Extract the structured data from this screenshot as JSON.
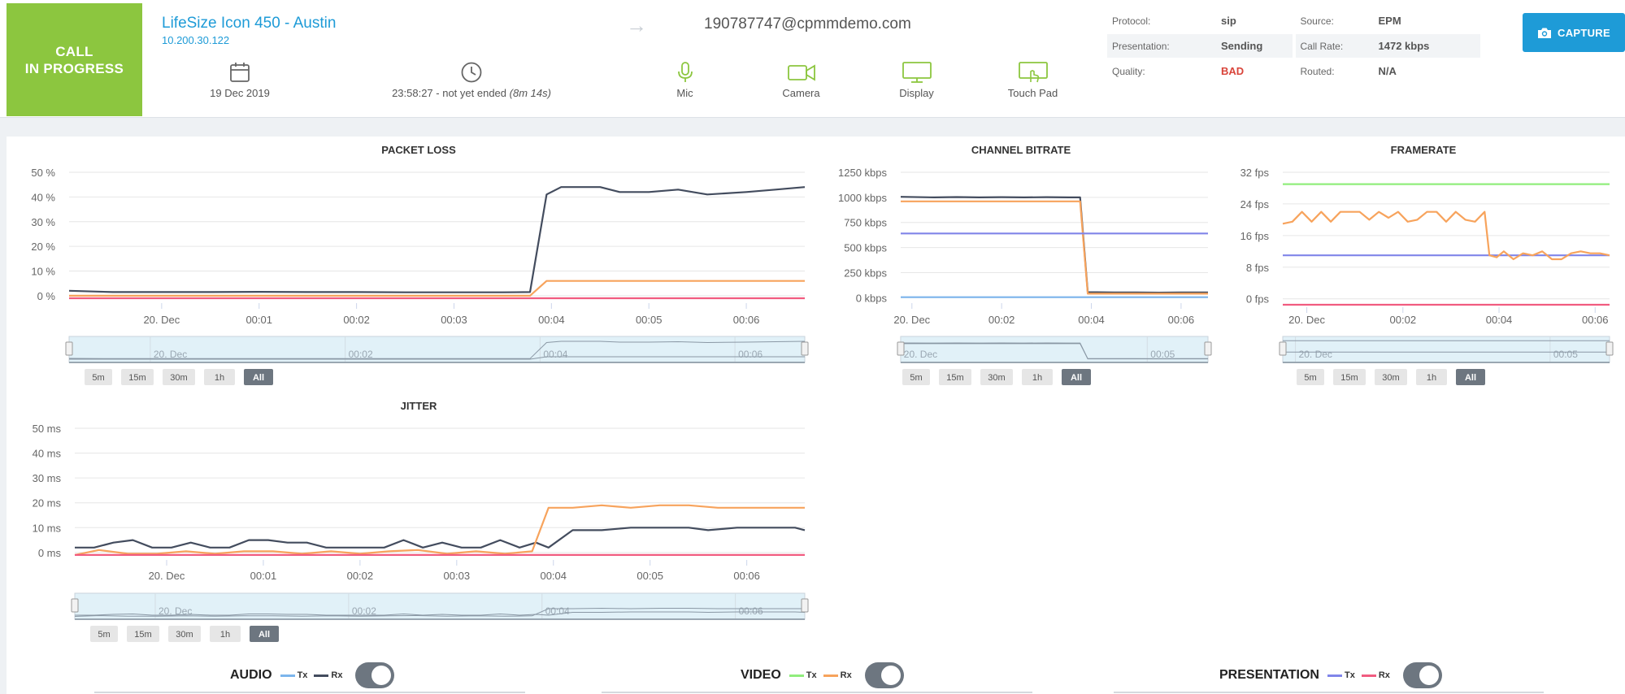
{
  "header": {
    "status_line1": "CALL",
    "status_line2": "IN PROGRESS",
    "device_name": "LifeSize Icon 450 - Austin",
    "device_ip": "10.200.30.122",
    "arrow": "→",
    "remote": "190787747@cpmmdemo.com",
    "date": "19 Dec 2019",
    "time_main": "23:58:27 - not yet ended",
    "time_duration": "(8m 14s)",
    "devices": {
      "mic": "Mic",
      "camera": "Camera",
      "display": "Display",
      "touchpad": "Touch Pad"
    },
    "device_color": "#8cc63f",
    "info": {
      "protocol_label": "Protocol:",
      "protocol_value": "sip",
      "source_label": "Source:",
      "source_value": "EPM",
      "presentation_label": "Presentation:",
      "presentation_value": "Sending",
      "callrate_label": "Call Rate:",
      "callrate_value": "1472 kbps",
      "quality_label": "Quality:",
      "quality_value": "BAD",
      "routed_label": "Routed:",
      "routed_value": "N/A"
    },
    "capture_label": "CAPTURE"
  },
  "range_buttons": [
    "5m",
    "15m",
    "30m",
    "1h",
    "All"
  ],
  "legend": {
    "audio": {
      "title": "AUDIO",
      "tx": "Tx",
      "rx": "Rx",
      "tx_color": "#7cb5ec",
      "rx_color": "#434c5e"
    },
    "video": {
      "title": "VIDEO",
      "tx": "Tx",
      "rx": "Rx",
      "tx_color": "#90ed7d",
      "rx_color": "#f7a35c"
    },
    "presentation": {
      "title": "PRESENTATION",
      "tx": "Tx",
      "rx": "Rx",
      "tx_color": "#8085e9",
      "rx_color": "#f15c80"
    }
  },
  "chart_data": [
    {
      "id": "packet-loss",
      "type": "line",
      "title": "PACKET LOSS",
      "x": [
        0,
        0.5,
        1,
        1.5,
        2,
        2.5,
        3,
        3.5,
        3.85,
        4,
        4.5,
        5,
        5.5,
        6,
        6.5,
        6.85
      ],
      "xlim": [
        -0.95,
        6.6
      ],
      "xticks": [
        {
          "v": 0,
          "label": "20. Dec"
        },
        {
          "v": 1,
          "label": "00:01"
        },
        {
          "v": 2,
          "label": "00:02"
        },
        {
          "v": 3,
          "label": "00:03"
        },
        {
          "v": 4,
          "label": "00:04"
        },
        {
          "v": 5,
          "label": "00:05"
        },
        {
          "v": 6,
          "label": "00:06"
        }
      ],
      "ylim": [
        -2,
        50
      ],
      "yticks": [
        {
          "v": 0,
          "label": "0 %"
        },
        {
          "v": 10,
          "label": "10 %"
        },
        {
          "v": 20,
          "label": "20 %"
        },
        {
          "v": 30,
          "label": "30 %"
        },
        {
          "v": 40,
          "label": "40 %"
        },
        {
          "v": 50,
          "label": "50 %"
        }
      ],
      "series": [
        {
          "color": "#434c5e",
          "x": [
            -0.95,
            -0.5,
            0,
            0.5,
            1,
            1.5,
            2,
            2.5,
            3,
            3.5,
            3.78,
            3.95,
            4.1,
            4.5,
            4.7,
            5,
            5.3,
            5.6,
            6,
            6.3,
            6.6
          ],
          "values": [
            2,
            1.5,
            1.5,
            1.5,
            1.6,
            1.5,
            1.5,
            1.4,
            1.4,
            1.4,
            1.5,
            41,
            44,
            44,
            42,
            42,
            43,
            41,
            42,
            43,
            44
          ]
        },
        {
          "color": "#f7a35c",
          "x": [
            -0.95,
            3.78,
            3.95,
            6.6
          ],
          "values": [
            0,
            0,
            6,
            6
          ]
        },
        {
          "color": "#f15c80",
          "x": [
            -0.95,
            6.6
          ],
          "values": [
            -1,
            -1
          ]
        }
      ],
      "navigator_labels": [
        {
          "v": 0,
          "label": "20. Dec"
        },
        {
          "v": 2,
          "label": "00:02"
        },
        {
          "v": 4,
          "label": "00:04"
        },
        {
          "v": 6,
          "label": "00:06"
        }
      ]
    },
    {
      "id": "channel-bitrate",
      "type": "line",
      "title": "CHANNEL BITRATE",
      "xlim": [
        -0.25,
        6.6
      ],
      "xticks": [
        {
          "v": 0,
          "label": "20. Dec"
        },
        {
          "v": 2,
          "label": "00:02"
        },
        {
          "v": 4,
          "label": "00:04"
        },
        {
          "v": 6,
          "label": "00:06"
        }
      ],
      "ylim": [
        -30,
        1250
      ],
      "yticks": [
        {
          "v": 0,
          "label": "0 kbps"
        },
        {
          "v": 250,
          "label": "250 kbps"
        },
        {
          "v": 500,
          "label": "500 kbps"
        },
        {
          "v": 750,
          "label": "750 kbps"
        },
        {
          "v": 1000,
          "label": "1000 kbps"
        },
        {
          "v": 1250,
          "label": "1250 kbps"
        }
      ],
      "series": [
        {
          "color": "#434c5e",
          "x": [
            -0.25,
            0.5,
            1,
            1.5,
            2,
            2.5,
            3,
            3.5,
            3.75,
            3.92,
            4.5,
            5,
            5.5,
            6,
            6.6
          ],
          "values": [
            1005,
            1000,
            1003,
            1000,
            1002,
            1000,
            1002,
            1000,
            1000,
            55,
            52,
            52,
            50,
            52,
            52
          ]
        },
        {
          "color": "#f7a35c",
          "x": [
            -0.25,
            3.75,
            3.92,
            6.6
          ],
          "values": [
            960,
            960,
            40,
            40
          ]
        },
        {
          "color": "#8085e9",
          "x": [
            -0.25,
            6.6
          ],
          "values": [
            640,
            640
          ]
        },
        {
          "color": "#7cb5ec",
          "x": [
            -0.25,
            6.6
          ],
          "values": [
            5,
            5
          ]
        }
      ],
      "navigator_labels": [
        {
          "v": 0,
          "label": "20. Dec"
        },
        {
          "v": 5.5,
          "label": "00:05"
        }
      ]
    },
    {
      "id": "framerate",
      "type": "line",
      "title": "FRAMERATE",
      "xlim": [
        -0.5,
        6.3
      ],
      "xticks": [
        {
          "v": 0,
          "label": "20. Dec"
        },
        {
          "v": 2,
          "label": "00:02"
        },
        {
          "v": 4,
          "label": "00:04"
        },
        {
          "v": 6,
          "label": "00:06"
        }
      ],
      "ylim": [
        -1.5,
        32
      ],
      "yticks": [
        {
          "v": 0,
          "label": "0 fps"
        },
        {
          "v": 8,
          "label": "8 fps"
        },
        {
          "v": 16,
          "label": "16 fps"
        },
        {
          "v": 24,
          "label": "24 fps"
        },
        {
          "v": 32,
          "label": "32 fps"
        }
      ],
      "series": [
        {
          "color": "#90ed7d",
          "x": [
            -0.5,
            6.3
          ],
          "values": [
            29,
            29
          ]
        },
        {
          "color": "#8085e9",
          "x": [
            -0.5,
            6.3
          ],
          "values": [
            11,
            11
          ]
        },
        {
          "color": "#f15c80",
          "x": [
            -0.5,
            6.3
          ],
          "values": [
            -1.5,
            -1.5
          ]
        },
        {
          "color": "#f7a35c",
          "x": [
            -0.5,
            -0.3,
            -0.1,
            0.1,
            0.3,
            0.5,
            0.7,
            0.9,
            1.1,
            1.3,
            1.5,
            1.7,
            1.9,
            2.1,
            2.3,
            2.5,
            2.7,
            2.9,
            3.1,
            3.3,
            3.5,
            3.7,
            3.8,
            3.95,
            4.1,
            4.3,
            4.5,
            4.7,
            4.9,
            5.1,
            5.3,
            5.5,
            5.7,
            5.9,
            6.1,
            6.3
          ],
          "values": [
            19,
            19.5,
            22,
            19.5,
            22,
            19.5,
            22,
            22,
            22,
            20,
            22,
            20.5,
            22,
            19.5,
            20,
            22,
            22,
            19.5,
            22,
            20,
            19.5,
            22,
            11,
            10.5,
            12,
            10,
            11.5,
            11,
            12,
            10,
            10,
            11.5,
            12,
            11.5,
            11.5,
            11
          ]
        }
      ],
      "navigator_labels": [
        {
          "v": 0,
          "label": "20. Dec"
        },
        {
          "v": 5.3,
          "label": "00:05"
        }
      ]
    },
    {
      "id": "jitter",
      "type": "line",
      "title": "JITTER",
      "xlim": [
        -0.95,
        6.6
      ],
      "xticks": [
        {
          "v": 0,
          "label": "20. Dec"
        },
        {
          "v": 1,
          "label": "00:01"
        },
        {
          "v": 2,
          "label": "00:02"
        },
        {
          "v": 3,
          "label": "00:03"
        },
        {
          "v": 4,
          "label": "00:04"
        },
        {
          "v": 5,
          "label": "00:05"
        },
        {
          "v": 6,
          "label": "00:06"
        }
      ],
      "ylim": [
        -2,
        50
      ],
      "yticks": [
        {
          "v": 0,
          "label": "0 ms"
        },
        {
          "v": 10,
          "label": "10 ms"
        },
        {
          "v": 20,
          "label": "20 ms"
        },
        {
          "v": 30,
          "label": "30 ms"
        },
        {
          "v": 40,
          "label": "40 ms"
        },
        {
          "v": 50,
          "label": "50 ms"
        }
      ],
      "series": [
        {
          "color": "#434c5e",
          "x": [
            -0.95,
            -0.75,
            -0.55,
            -0.35,
            -0.15,
            0.05,
            0.25,
            0.45,
            0.65,
            0.85,
            1.05,
            1.25,
            1.45,
            1.65,
            1.85,
            2.05,
            2.25,
            2.45,
            2.65,
            2.85,
            3.05,
            3.25,
            3.45,
            3.65,
            3.82,
            3.95,
            4.2,
            4.5,
            4.8,
            5.1,
            5.4,
            5.6,
            5.9,
            6.2,
            6.5,
            6.6
          ],
          "values": [
            2,
            2,
            4,
            5,
            2,
            2,
            4,
            2,
            2,
            5,
            5,
            4,
            4,
            2,
            2,
            2,
            2,
            5,
            2,
            4,
            2,
            2,
            5,
            2,
            4,
            2,
            9,
            9,
            10,
            10,
            10,
            9,
            10,
            10,
            10,
            9
          ]
        },
        {
          "color": "#f7a35c",
          "x": [
            -0.95,
            -0.7,
            -0.4,
            -0.1,
            0.2,
            0.5,
            0.8,
            1.1,
            1.4,
            1.7,
            2.0,
            2.3,
            2.6,
            2.9,
            3.2,
            3.5,
            3.78,
            3.95,
            4.2,
            4.5,
            4.8,
            5.1,
            5.4,
            5.7,
            6.0,
            6.3,
            6.6
          ],
          "values": [
            -1,
            1,
            -0.5,
            -0.5,
            0.5,
            -0.5,
            0.5,
            0.5,
            -0.5,
            0.5,
            -0.5,
            0.5,
            1,
            -0.5,
            0.5,
            -0.5,
            0.5,
            18,
            18,
            19,
            18,
            19,
            19,
            18,
            18,
            18,
            18
          ]
        },
        {
          "color": "#f15c80",
          "x": [
            -0.95,
            6.6
          ],
          "values": [
            -1,
            -1
          ]
        }
      ],
      "navigator_labels": [
        {
          "v": 0,
          "label": "20. Dec"
        },
        {
          "v": 2,
          "label": "00:02"
        },
        {
          "v": 4,
          "label": "00:04"
        },
        {
          "v": 6,
          "label": "00:06"
        }
      ]
    }
  ]
}
